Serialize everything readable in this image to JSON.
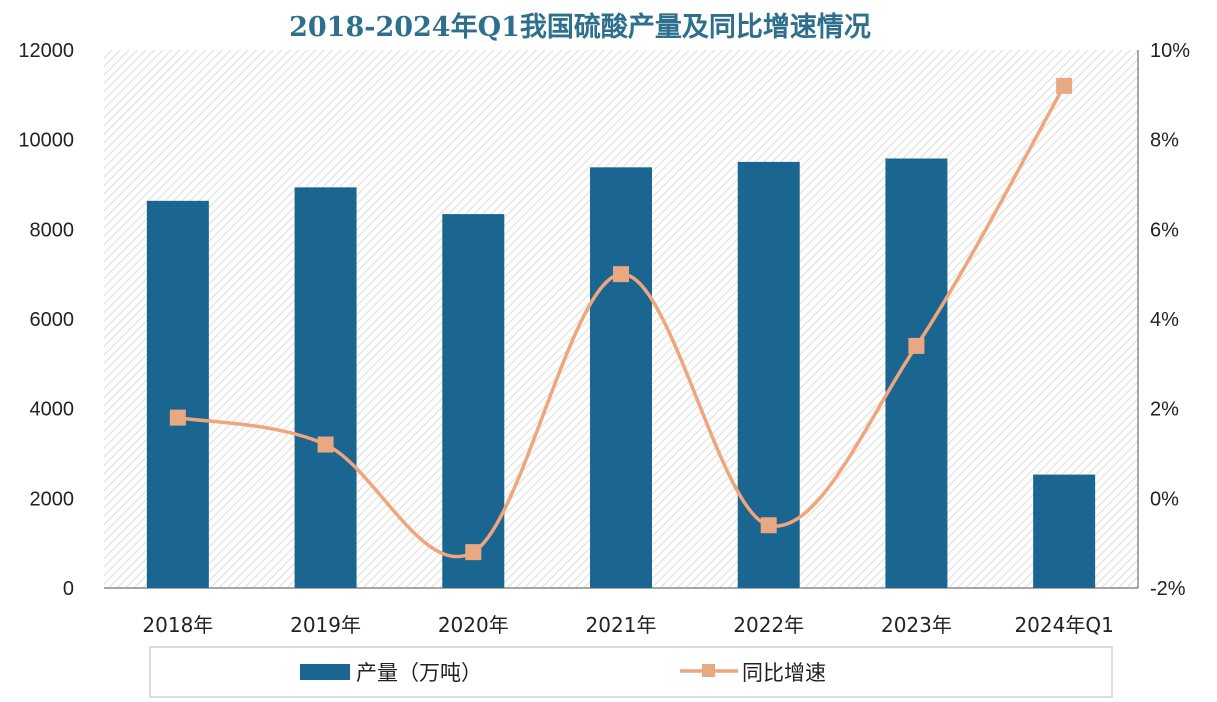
{
  "chart_data": {
    "type": "bar",
    "title": "2018-2024年Q1我国硫酸产量及同比增速情况",
    "categories": [
      "2018年",
      "2019年",
      "2020年",
      "2021年",
      "2022年",
      "2023年",
      "2024年Q1"
    ],
    "series": [
      {
        "name": "产量（万吨）",
        "type": "bar",
        "axis": "left",
        "values": [
          8636,
          8936,
          8340,
          9383,
          9504,
          9580,
          2530
        ]
      },
      {
        "name": "同比增速",
        "type": "line",
        "axis": "right",
        "values": [
          1.8,
          1.2,
          -1.2,
          5.0,
          -0.6,
          3.4,
          9.2
        ]
      }
    ],
    "y_left": {
      "min": 0,
      "max": 12000,
      "ticks": [
        0,
        2000,
        4000,
        6000,
        8000,
        10000,
        12000
      ]
    },
    "y_right": {
      "min": -2,
      "max": 10,
      "ticks": [
        "-2%",
        "0%",
        "2%",
        "4%",
        "6%",
        "8%",
        "10%"
      ]
    },
    "legend_position": "bottom",
    "grid": false,
    "colors": {
      "bar": "#1a6690",
      "line": "#f0a67c",
      "marker": "#e8a882",
      "title": "#2e6f8e"
    }
  }
}
